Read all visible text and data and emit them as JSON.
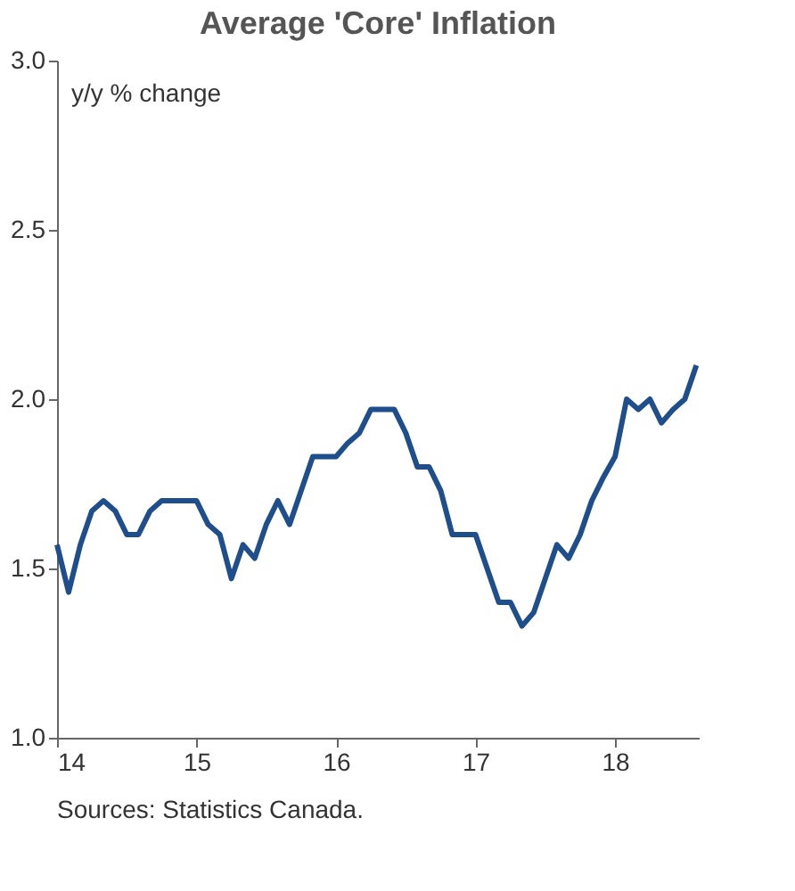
{
  "chart_data": {
    "type": "line",
    "title": "Average 'Core' Inflation",
    "ylabel": "y/y % change",
    "x": [
      14.0,
      14.083,
      14.167,
      14.25,
      14.333,
      14.417,
      14.5,
      14.583,
      14.667,
      14.75,
      14.833,
      14.917,
      15.0,
      15.083,
      15.167,
      15.25,
      15.333,
      15.417,
      15.5,
      15.583,
      15.667,
      15.75,
      15.833,
      15.917,
      16.0,
      16.083,
      16.167,
      16.25,
      16.333,
      16.417,
      16.5,
      16.583,
      16.667,
      16.75,
      16.833,
      16.917,
      17.0,
      17.083,
      17.167,
      17.25,
      17.333,
      17.417,
      17.5,
      17.583,
      17.667,
      17.75,
      17.833,
      17.917,
      18.0,
      18.083,
      18.167,
      18.25,
      18.333,
      18.417,
      18.5,
      18.583
    ],
    "series": [
      {
        "color": "#1f4e8c",
        "values": [
          1.57,
          1.43,
          1.57,
          1.67,
          1.7,
          1.67,
          1.6,
          1.6,
          1.67,
          1.7,
          1.7,
          1.7,
          1.7,
          1.63,
          1.6,
          1.47,
          1.57,
          1.53,
          1.63,
          1.7,
          1.63,
          1.73,
          1.83,
          1.83,
          1.83,
          1.87,
          1.9,
          1.97,
          1.97,
          1.97,
          1.9,
          1.8,
          1.8,
          1.73,
          1.6,
          1.6,
          1.6,
          1.5,
          1.4,
          1.4,
          1.33,
          1.37,
          1.47,
          1.57,
          1.53,
          1.6,
          1.7,
          1.77,
          1.83,
          2.0,
          1.97,
          2.0,
          1.93,
          1.97,
          2.0,
          2.1
        ]
      }
    ],
    "xlim": [
      14,
      18.6
    ],
    "xticks": [
      14,
      15,
      16,
      17,
      18
    ],
    "ylim": [
      1,
      3
    ],
    "yticks": [
      {
        "value": 1,
        "label": "1.0"
      },
      {
        "value": 1.5,
        "label": "1.5"
      },
      {
        "value": 2,
        "label": "2.0"
      },
      {
        "value": 2.5,
        "label": "2.5"
      },
      {
        "value": 3,
        "label": "3.0"
      }
    ],
    "grid": false,
    "marker": "none",
    "line_style": "solid",
    "annotations": [
      "Sources: Statistics Canada."
    ]
  }
}
